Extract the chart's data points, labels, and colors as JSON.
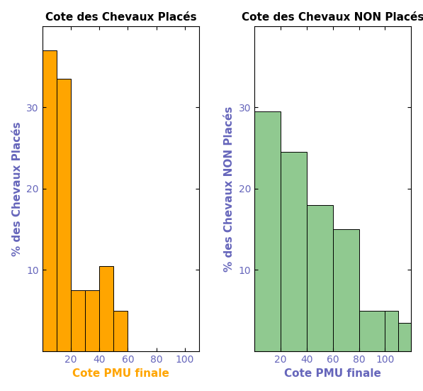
{
  "left_title": "Cote des Chevaux Placés",
  "right_title": "Cote des Chevaux NON Placés",
  "left_ylabel": "% des Chevaux Placés",
  "right_ylabel": "% des Chevaux NON Placés",
  "xlabel": "Cote PMU finale",
  "left_bar_edges": [
    0,
    10,
    20,
    30,
    40,
    50,
    60
  ],
  "left_bar_heights": [
    37.0,
    33.5,
    7.5,
    7.5,
    10.5,
    5.0
  ],
  "right_bar_edges": [
    0,
    20,
    40,
    60,
    80,
    100,
    110,
    120
  ],
  "right_bar_heights": [
    29.5,
    24.5,
    18.0,
    15.0,
    5.0,
    5.0,
    3.5
  ],
  "left_color": "#FFA500",
  "right_color": "#90C990",
  "left_xlim": [
    0,
    110
  ],
  "right_xlim": [
    0,
    120
  ],
  "left_xticks": [
    20,
    40,
    60,
    80,
    100
  ],
  "right_xticks": [
    20,
    40,
    60,
    80,
    100
  ],
  "yticks": [
    10,
    20,
    30
  ],
  "ylim": [
    0,
    40
  ],
  "title_color": "#000000",
  "ylabel_color": "#6666bb",
  "xlabel_left_color": "#FFA500",
  "xlabel_right_color": "#6666bb",
  "tick_label_color": "#6666bb",
  "background_color": "#ffffff",
  "title_fontsize": 11,
  "axis_label_fontsize": 11,
  "tick_label_fontsize": 10
}
